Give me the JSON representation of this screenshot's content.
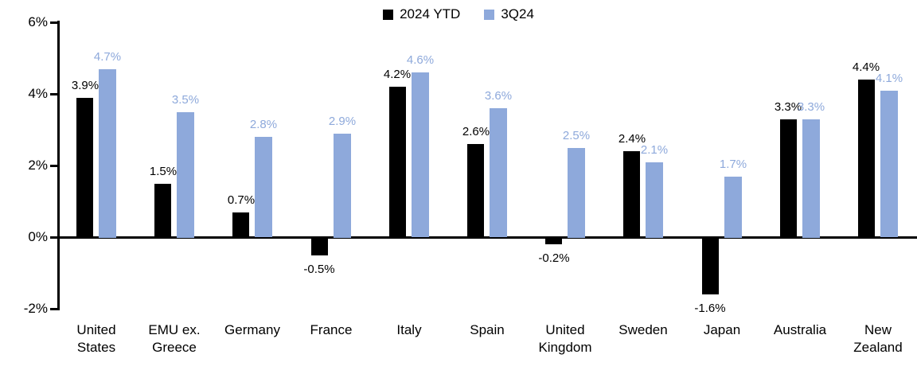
{
  "chart_data": {
    "type": "bar",
    "title": "",
    "xlabel": "",
    "ylabel": "",
    "categories": [
      "United States",
      "EMU ex. Greece",
      "Germany",
      "France",
      "Italy",
      "Spain",
      "United Kingdom",
      "Sweden",
      "Japan",
      "Australia",
      "New Zealand"
    ],
    "series": [
      {
        "name": "2024 YTD",
        "color": "#000000",
        "values": [
          3.9,
          1.5,
          0.7,
          -0.5,
          4.2,
          2.6,
          -0.2,
          2.4,
          -1.6,
          3.3,
          4.4
        ]
      },
      {
        "name": "3Q24",
        "color": "#8EA9DB",
        "values": [
          4.7,
          3.5,
          2.8,
          2.9,
          4.6,
          3.6,
          2.5,
          2.1,
          1.7,
          3.3,
          4.1
        ]
      }
    ],
    "data_labels": {
      "2024 YTD": [
        "3.9%",
        "1.5%",
        "0.7%",
        "-0.5%",
        "4.2%",
        "2.6%",
        "-0.2%",
        "2.4%",
        "-1.6%",
        "3.3%",
        "4.4%"
      ],
      "3Q24": [
        "4.7%",
        "3.5%",
        "2.8%",
        "2.9%",
        "4.6%",
        "3.6%",
        "2.5%",
        "2.1%",
        "1.7%",
        "3.3%",
        "4.1%"
      ]
    },
    "ylim": [
      -2,
      6
    ],
    "yticks": [
      6,
      4,
      2,
      0,
      -2
    ],
    "ytick_labels": [
      "6%",
      "4%",
      "2%",
      "0%",
      "-2%"
    ],
    "legend_position": "top-center",
    "grid": false,
    "value_suffix": "%"
  }
}
